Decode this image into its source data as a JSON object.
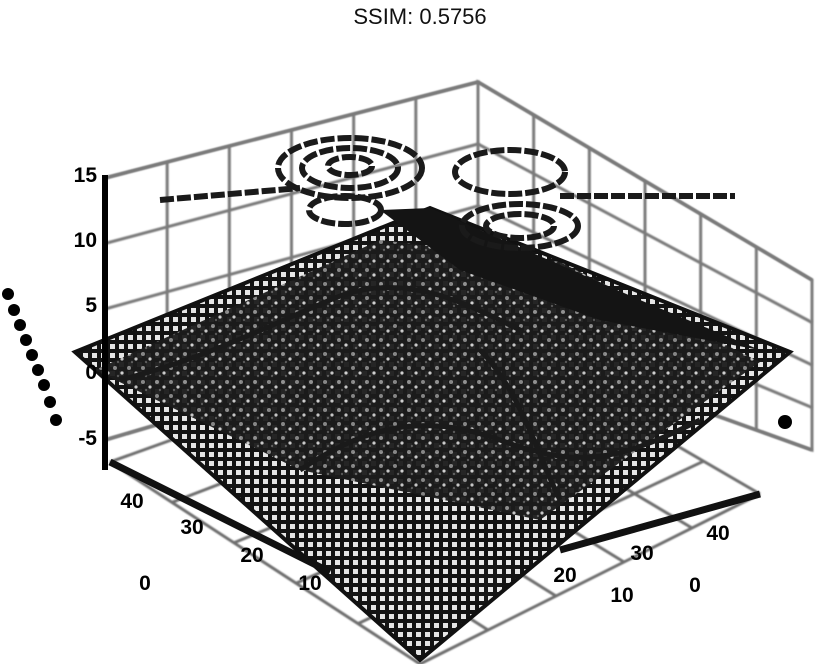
{
  "title": "SSIM: 0.5756",
  "chart_data": {
    "type": "surface3d",
    "title": "SSIM: 0.5756",
    "z_ticks": [
      "15",
      "10",
      "5",
      "0",
      "-5"
    ],
    "x_ticks": [
      "0",
      "10",
      "20",
      "30",
      "40"
    ],
    "y_ticks": [
      "0",
      "10",
      "20",
      "30",
      "40"
    ],
    "zlim": [
      -5,
      15
    ],
    "xlim": [
      0,
      45
    ],
    "ylim": [
      0,
      45
    ],
    "grid": true,
    "colormap": "grayscale",
    "surface_note": "wireframe surface with contour projection on top plane",
    "colors": {
      "surface": "#151515",
      "grid": "#7a7a7a",
      "contour": "#1a1a1a",
      "mesh": "#e8e8e8"
    }
  }
}
